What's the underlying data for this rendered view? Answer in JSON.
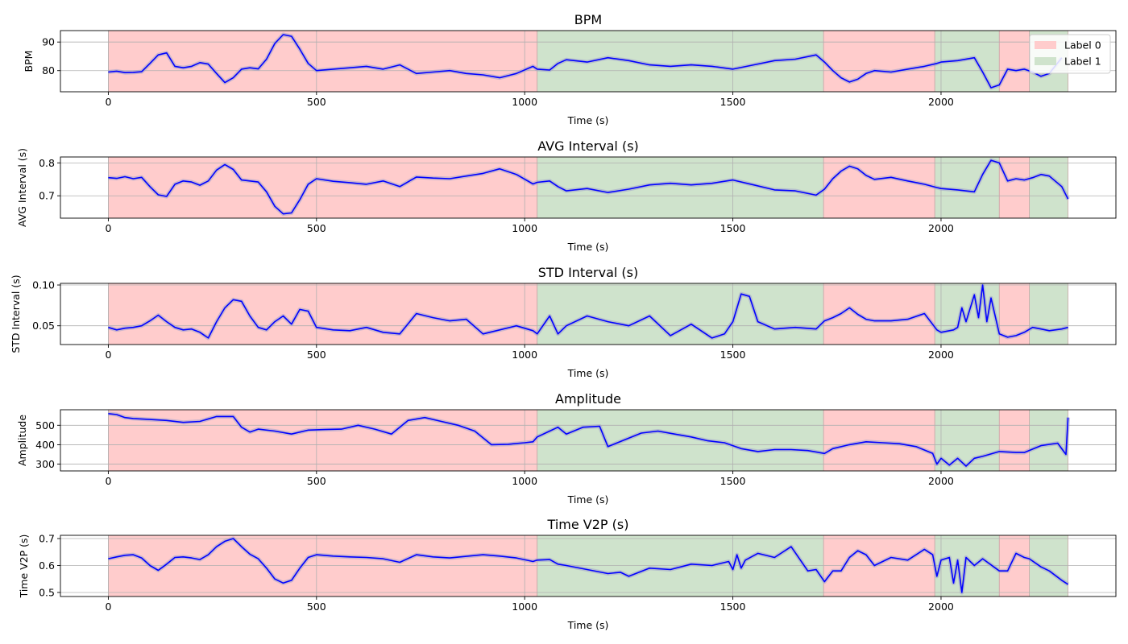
{
  "figure": {
    "background": "#ffffff"
  },
  "colors": {
    "label0": "#ffcccc",
    "label1": "#cfe3cc",
    "line": "#0000ff",
    "line_halo": "#a0a0cc",
    "grid": "#b0b0b0",
    "segment_edge": "#c9a8a8"
  },
  "legend": {
    "placement": "top-right",
    "items": [
      {
        "label": "Label 0",
        "color": "#ffcccc"
      },
      {
        "label": "Label 1",
        "color": "#cfe3cc"
      }
    ]
  },
  "segments": [
    {
      "start": 0,
      "end": 1030,
      "label": 0
    },
    {
      "start": 1030,
      "end": 1718,
      "label": 1
    },
    {
      "start": 1718,
      "end": 1985,
      "label": 0
    },
    {
      "start": 1985,
      "end": 2140,
      "label": 1
    },
    {
      "start": 2140,
      "end": 2212,
      "label": 0
    },
    {
      "start": 2212,
      "end": 2305,
      "label": 1
    }
  ],
  "chart_data": [
    {
      "type": "line",
      "title": "BPM",
      "xlabel": "Time (s)",
      "ylabel": "BPM",
      "xlim": [
        -115,
        2420
      ],
      "ylim": [
        72.6,
        94.0
      ],
      "xticks": [
        0,
        500,
        1000,
        1500,
        2000
      ],
      "xtick_labels": [
        "0",
        "500",
        "1000",
        "1500",
        "2000"
      ],
      "yticks": [
        80,
        90
      ],
      "ytick_labels": [
        "80",
        "90"
      ],
      "grid": true,
      "show_legend": true,
      "series": [
        {
          "x": [
            0,
            20,
            40,
            60,
            80,
            100,
            120,
            140,
            160,
            180,
            200,
            220,
            240,
            260,
            280,
            300,
            320,
            340,
            360,
            380,
            400,
            420,
            440,
            460,
            480,
            500,
            540,
            580,
            620,
            660,
            700,
            740,
            780,
            820,
            860,
            900,
            940,
            980,
            1020,
            1030,
            1060,
            1080,
            1100,
            1150,
            1200,
            1250,
            1300,
            1350,
            1400,
            1450,
            1500,
            1550,
            1600,
            1650,
            1700,
            1720,
            1740,
            1760,
            1780,
            1800,
            1820,
            1840,
            1880,
            1920,
            1960,
            1990,
            2000,
            2040,
            2080,
            2100,
            2120,
            2140,
            2160,
            2180,
            2200,
            2220,
            2240,
            2260,
            2290
          ],
          "y": [
            79.5,
            79.8,
            79.3,
            79.4,
            79.6,
            82.5,
            85.5,
            86.2,
            81.5,
            81.0,
            81.5,
            82.8,
            82.3,
            79.0,
            75.8,
            77.5,
            80.5,
            81.0,
            80.6,
            84.0,
            89.5,
            92.6,
            92.0,
            87.5,
            82.5,
            80.0,
            80.5,
            81.0,
            81.5,
            80.5,
            82.0,
            79.0,
            79.5,
            80.0,
            79.0,
            78.5,
            77.5,
            79.0,
            81.5,
            80.5,
            80.2,
            82.5,
            83.8,
            83.0,
            84.5,
            83.5,
            82.0,
            81.5,
            82.0,
            81.5,
            80.5,
            82.0,
            83.5,
            84.0,
            85.5,
            83.0,
            80.0,
            77.5,
            76.0,
            77.0,
            79.0,
            80.0,
            79.5,
            80.5,
            81.5,
            82.5,
            83.0,
            83.5,
            84.5,
            79.5,
            74.0,
            75.0,
            80.5,
            80.0,
            80.5,
            79.5,
            78.0,
            79.0,
            84.5
          ]
        }
      ]
    },
    {
      "type": "line",
      "title": "AVG Interval (s)",
      "xlabel": "Time (s)",
      "ylabel": "AVG Interval (s)",
      "xlim": [
        -115,
        2420
      ],
      "ylim": [
        0.632,
        0.818
      ],
      "xticks": [
        0,
        500,
        1000,
        1500,
        2000
      ],
      "xtick_labels": [
        "0",
        "500",
        "1000",
        "1500",
        "2000"
      ],
      "yticks": [
        0.7,
        0.8
      ],
      "ytick_labels": [
        "0.7",
        "0.8"
      ],
      "grid": true,
      "show_legend": false,
      "series": [
        {
          "x": [
            0,
            20,
            40,
            60,
            80,
            100,
            120,
            140,
            160,
            180,
            200,
            220,
            240,
            260,
            280,
            300,
            320,
            340,
            360,
            380,
            400,
            420,
            440,
            460,
            480,
            500,
            540,
            580,
            620,
            660,
            700,
            740,
            780,
            820,
            860,
            900,
            940,
            980,
            1020,
            1030,
            1060,
            1080,
            1100,
            1150,
            1200,
            1250,
            1300,
            1350,
            1400,
            1450,
            1500,
            1550,
            1600,
            1650,
            1700,
            1720,
            1740,
            1760,
            1780,
            1800,
            1820,
            1840,
            1880,
            1920,
            1960,
            1990,
            2000,
            2040,
            2080,
            2100,
            2120,
            2140,
            2160,
            2180,
            2200,
            2220,
            2240,
            2260,
            2290,
            2305
          ],
          "y": [
            0.755,
            0.753,
            0.758,
            0.752,
            0.756,
            0.728,
            0.703,
            0.698,
            0.735,
            0.745,
            0.742,
            0.732,
            0.745,
            0.778,
            0.795,
            0.78,
            0.748,
            0.745,
            0.742,
            0.712,
            0.668,
            0.645,
            0.648,
            0.688,
            0.735,
            0.752,
            0.744,
            0.74,
            0.735,
            0.745,
            0.728,
            0.757,
            0.754,
            0.752,
            0.76,
            0.768,
            0.782,
            0.765,
            0.736,
            0.741,
            0.745,
            0.728,
            0.715,
            0.722,
            0.71,
            0.72,
            0.733,
            0.738,
            0.733,
            0.738,
            0.748,
            0.733,
            0.718,
            0.715,
            0.702,
            0.72,
            0.752,
            0.775,
            0.79,
            0.782,
            0.762,
            0.75,
            0.756,
            0.745,
            0.735,
            0.725,
            0.722,
            0.718,
            0.712,
            0.765,
            0.808,
            0.8,
            0.745,
            0.752,
            0.748,
            0.755,
            0.765,
            0.76,
            0.728,
            0.69
          ]
        }
      ]
    },
    {
      "type": "line",
      "title": "STD Interval (s)",
      "xlabel": "Time (s)",
      "ylabel": "STD Interval (s)",
      "xlim": [
        -115,
        2420
      ],
      "ylim": [
        0.027,
        0.102
      ],
      "xticks": [
        0,
        500,
        1000,
        1500,
        2000
      ],
      "xtick_labels": [
        "0",
        "500",
        "1000",
        "1500",
        "2000"
      ],
      "yticks": [
        0.05,
        0.1
      ],
      "ytick_labels": [
        "0.05",
        "0.10"
      ],
      "grid": true,
      "show_legend": false,
      "series": [
        {
          "x": [
            0,
            20,
            40,
            60,
            80,
            100,
            120,
            140,
            160,
            180,
            200,
            220,
            240,
            260,
            280,
            300,
            320,
            340,
            360,
            380,
            400,
            420,
            440,
            460,
            480,
            500,
            540,
            580,
            620,
            660,
            700,
            740,
            780,
            820,
            860,
            900,
            940,
            980,
            1020,
            1030,
            1060,
            1080,
            1100,
            1150,
            1200,
            1250,
            1300,
            1350,
            1400,
            1450,
            1480,
            1500,
            1520,
            1540,
            1560,
            1600,
            1650,
            1700,
            1720,
            1740,
            1760,
            1780,
            1800,
            1820,
            1840,
            1880,
            1920,
            1960,
            1990,
            2000,
            2030,
            2040,
            2050,
            2060,
            2080,
            2090,
            2100,
            2110,
            2120,
            2140,
            2160,
            2180,
            2200,
            2220,
            2240,
            2260,
            2290,
            2305
          ],
          "y": [
            0.048,
            0.045,
            0.047,
            0.048,
            0.05,
            0.056,
            0.063,
            0.055,
            0.048,
            0.045,
            0.046,
            0.042,
            0.035,
            0.055,
            0.072,
            0.082,
            0.08,
            0.062,
            0.048,
            0.045,
            0.055,
            0.062,
            0.052,
            0.07,
            0.068,
            0.048,
            0.045,
            0.044,
            0.048,
            0.042,
            0.04,
            0.065,
            0.06,
            0.056,
            0.058,
            0.04,
            0.045,
            0.05,
            0.044,
            0.04,
            0.062,
            0.04,
            0.05,
            0.062,
            0.055,
            0.05,
            0.062,
            0.038,
            0.052,
            0.035,
            0.04,
            0.055,
            0.089,
            0.086,
            0.055,
            0.046,
            0.048,
            0.046,
            0.056,
            0.06,
            0.065,
            0.072,
            0.064,
            0.058,
            0.056,
            0.056,
            0.058,
            0.065,
            0.045,
            0.042,
            0.045,
            0.048,
            0.072,
            0.055,
            0.088,
            0.06,
            0.1,
            0.055,
            0.084,
            0.04,
            0.036,
            0.038,
            0.042,
            0.048,
            0.046,
            0.044,
            0.046,
            0.048
          ]
        }
      ]
    },
    {
      "type": "line",
      "title": "Amplitude",
      "xlabel": "Time (s)",
      "ylabel": "Amplitude",
      "xlim": [
        -115,
        2420
      ],
      "ylim": [
        265,
        580
      ],
      "xticks": [
        0,
        500,
        1000,
        1500,
        2000
      ],
      "xtick_labels": [
        "0",
        "500",
        "1000",
        "1500",
        "2000"
      ],
      "yticks": [
        300,
        400,
        500
      ],
      "ytick_labels": [
        "300",
        "400",
        "500"
      ],
      "grid": true,
      "show_legend": false,
      "series": [
        {
          "x": [
            0,
            20,
            40,
            60,
            100,
            140,
            180,
            220,
            260,
            300,
            320,
            340,
            360,
            400,
            440,
            480,
            520,
            560,
            600,
            640,
            680,
            720,
            760,
            800,
            840,
            880,
            920,
            960,
            1000,
            1020,
            1030,
            1060,
            1080,
            1100,
            1140,
            1180,
            1200,
            1240,
            1280,
            1320,
            1360,
            1400,
            1440,
            1480,
            1520,
            1560,
            1600,
            1640,
            1680,
            1720,
            1740,
            1780,
            1820,
            1860,
            1900,
            1940,
            1980,
            1990,
            2000,
            2020,
            2040,
            2060,
            2080,
            2100,
            2140,
            2180,
            2200,
            2240,
            2280,
            2300,
            2305
          ],
          "y": [
            560,
            555,
            540,
            535,
            530,
            525,
            515,
            520,
            545,
            545,
            490,
            465,
            480,
            470,
            455,
            475,
            478,
            480,
            500,
            480,
            455,
            525,
            540,
            520,
            500,
            470,
            400,
            402,
            410,
            415,
            440,
            470,
            490,
            455,
            490,
            495,
            390,
            425,
            460,
            470,
            455,
            440,
            420,
            410,
            380,
            365,
            375,
            375,
            370,
            355,
            380,
            400,
            415,
            410,
            405,
            390,
            355,
            300,
            330,
            295,
            330,
            290,
            330,
            340,
            365,
            360,
            360,
            395,
            408,
            350,
            540
          ]
        }
      ]
    },
    {
      "type": "line",
      "title": "Time V2P (s)",
      "xlabel": "Time (s)",
      "ylabel": "Time V2P (s)",
      "xlim": [
        -115,
        2420
      ],
      "ylim": [
        0.485,
        0.712
      ],
      "xticks": [
        0,
        500,
        1000,
        1500,
        2000
      ],
      "xtick_labels": [
        "0",
        "500",
        "1000",
        "1500",
        "2000"
      ],
      "yticks": [
        0.5,
        0.6,
        0.7
      ],
      "ytick_labels": [
        "0.5",
        "0.6",
        "0.7"
      ],
      "grid": true,
      "show_legend": false,
      "series": [
        {
          "x": [
            0,
            20,
            40,
            60,
            80,
            100,
            120,
            140,
            160,
            180,
            200,
            220,
            240,
            260,
            280,
            300,
            320,
            340,
            360,
            380,
            400,
            420,
            440,
            460,
            480,
            500,
            540,
            580,
            620,
            660,
            700,
            740,
            780,
            820,
            860,
            900,
            940,
            980,
            1020,
            1030,
            1060,
            1080,
            1100,
            1150,
            1200,
            1230,
            1250,
            1300,
            1350,
            1400,
            1450,
            1490,
            1500,
            1510,
            1520,
            1530,
            1560,
            1600,
            1640,
            1680,
            1700,
            1720,
            1740,
            1760,
            1780,
            1800,
            1820,
            1840,
            1880,
            1920,
            1960,
            1980,
            1990,
            2000,
            2020,
            2030,
            2040,
            2050,
            2060,
            2080,
            2100,
            2140,
            2160,
            2180,
            2200,
            2212,
            2240,
            2260,
            2290,
            2305
          ],
          "y": [
            0.625,
            0.632,
            0.638,
            0.64,
            0.628,
            0.6,
            0.582,
            0.605,
            0.63,
            0.632,
            0.628,
            0.622,
            0.64,
            0.67,
            0.69,
            0.7,
            0.67,
            0.642,
            0.625,
            0.59,
            0.55,
            0.535,
            0.545,
            0.59,
            0.63,
            0.64,
            0.635,
            0.632,
            0.63,
            0.625,
            0.612,
            0.64,
            0.632,
            0.628,
            0.634,
            0.64,
            0.635,
            0.628,
            0.615,
            0.62,
            0.622,
            0.605,
            0.6,
            0.585,
            0.57,
            0.575,
            0.56,
            0.59,
            0.585,
            0.605,
            0.6,
            0.615,
            0.585,
            0.64,
            0.59,
            0.62,
            0.645,
            0.63,
            0.67,
            0.58,
            0.585,
            0.54,
            0.58,
            0.58,
            0.63,
            0.655,
            0.64,
            0.6,
            0.63,
            0.62,
            0.66,
            0.64,
            0.56,
            0.62,
            0.63,
            0.535,
            0.62,
            0.5,
            0.63,
            0.6,
            0.625,
            0.58,
            0.58,
            0.645,
            0.63,
            0.625,
            0.595,
            0.58,
            0.545,
            0.53
          ]
        }
      ]
    }
  ]
}
